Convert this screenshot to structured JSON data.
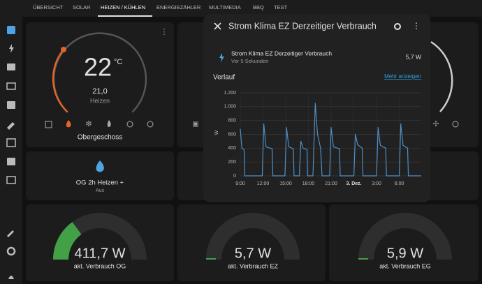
{
  "tabs": [
    "ÜBERSICHT",
    "SOLAR",
    "HEIZEN / KÜHLEN",
    "ENERGIEZÄHLER",
    "MULTIMEDIA",
    "BBQ",
    "TEST"
  ],
  "thermostat": {
    "temperature": "22",
    "unit": "°C",
    "target": "21,0",
    "mode": "Heizen",
    "name": "Obergeschoss"
  },
  "scene": {
    "name": "OG 2h Heizen +",
    "state": "Aus"
  },
  "gauges": [
    {
      "value": "411,7 W",
      "name": "akt. Verbrauch OG"
    },
    {
      "value": "5,7 W",
      "name": "akt. Verbrauch EZ"
    },
    {
      "value": "5,9 W",
      "name": "akt. Verbrauch EG"
    }
  ],
  "dialog": {
    "title": "Strom Klima EZ Derzeitiger Verbrauch",
    "entity": {
      "name": "Strom Klima EZ Derzeitiger Verbrauch",
      "time": "Vor 5 Sekunden",
      "state": "5,7 W"
    },
    "history_title": "Verlauf",
    "more": "Mehr anzeigen",
    "chart_data": {
      "type": "line",
      "ylabel": "W",
      "color": "#4f8fc6",
      "grid": true,
      "x": [
        9.0,
        9.2,
        9.5,
        9.6,
        11.9,
        12.1,
        12.4,
        13.2,
        13.3,
        14.9,
        15.1,
        15.4,
        16.0,
        16.1,
        16.8,
        17.0,
        17.3,
        17.8,
        17.9,
        18.6,
        18.9,
        19.2,
        19.6,
        19.8,
        20.8,
        21.0,
        21.3,
        22.1,
        22.2,
        24.0,
        24.2,
        24.5,
        25.1,
        25.2,
        27.0,
        27.2,
        27.5,
        28.2,
        28.3,
        30.0,
        30.2,
        30.5,
        31.1,
        31.2,
        32.9
      ],
      "values": [
        680,
        400,
        380,
        0,
        0,
        750,
        420,
        390,
        0,
        0,
        700,
        420,
        390,
        0,
        0,
        500,
        400,
        380,
        0,
        0,
        1050,
        600,
        400,
        0,
        0,
        700,
        420,
        390,
        0,
        0,
        600,
        450,
        400,
        0,
        0,
        700,
        440,
        400,
        0,
        0,
        750,
        440,
        400,
        0,
        0
      ],
      "xlim": [
        9,
        32.9
      ],
      "ylim": [
        0,
        1200
      ],
      "xticks": [
        {
          "value": 9,
          "label": "9:00"
        },
        {
          "value": 12,
          "label": "12:00"
        },
        {
          "value": 15,
          "label": "15:00"
        },
        {
          "value": 18,
          "label": "18:00"
        },
        {
          "value": 21,
          "label": "21:00"
        },
        {
          "value": 24,
          "label": "3. Dez."
        },
        {
          "value": 27,
          "label": "3:00"
        },
        {
          "value": 30,
          "label": "6:00"
        }
      ],
      "yticks": [
        0,
        200,
        400,
        600,
        800,
        {
          "value": 1000,
          "label": "1.000"
        },
        {
          "value": 1200,
          "label": "1.200"
        }
      ]
    }
  }
}
